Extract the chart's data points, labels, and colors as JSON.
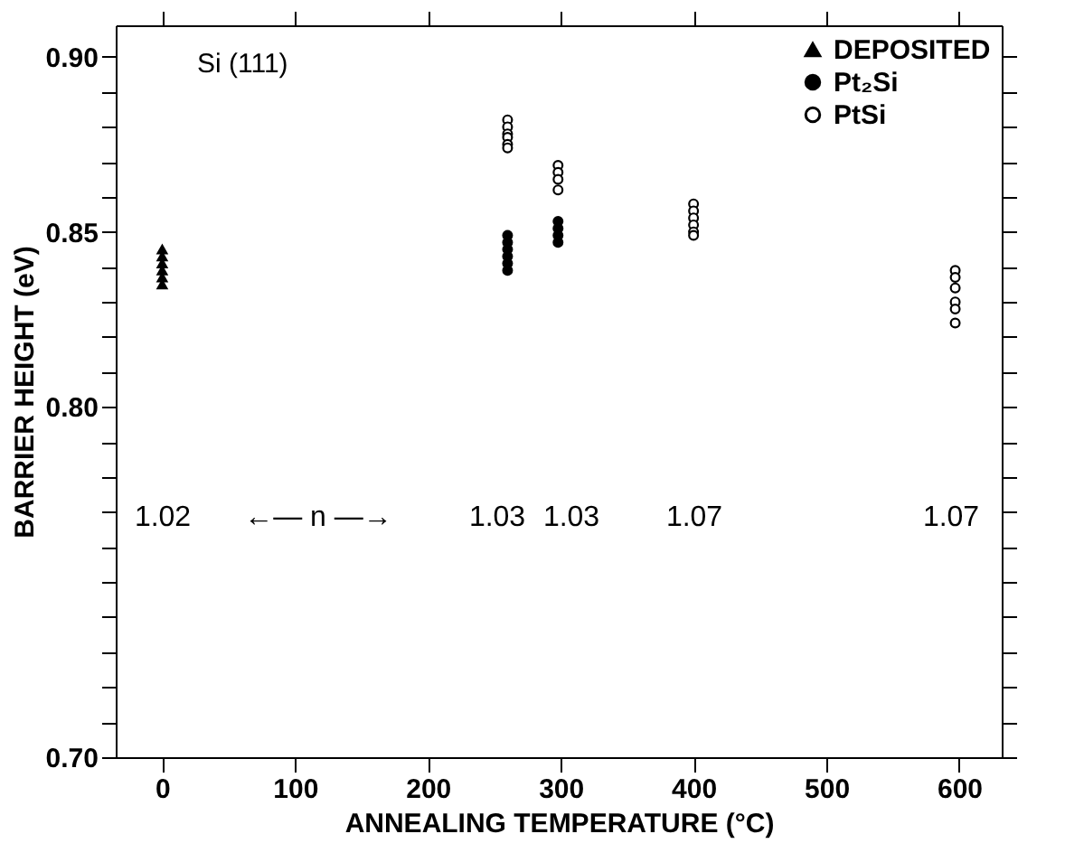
{
  "chart_data": {
    "type": "scatter",
    "xlabel": "ANNEALING TEMPERATURE (°C)",
    "ylabel": "BARRIER HEIGHT (eV)",
    "xlim": [
      -35,
      632
    ],
    "ylim": [
      0.7,
      0.909
    ],
    "xticks": [
      0,
      100,
      200,
      300,
      400,
      500,
      600
    ],
    "yticks": [
      {
        "value": 0.7,
        "label": "0.70"
      },
      {
        "value": 0.71,
        "label": null
      },
      {
        "value": 0.72,
        "label": null
      },
      {
        "value": 0.73,
        "label": null
      },
      {
        "value": 0.74,
        "label": null
      },
      {
        "value": 0.75,
        "label": null
      },
      {
        "value": 0.76,
        "label": null
      },
      {
        "value": 0.77,
        "label": null
      },
      {
        "value": 0.78,
        "label": null
      },
      {
        "value": 0.79,
        "label": null
      },
      {
        "value": 0.8,
        "label": "0.80"
      },
      {
        "value": 0.81,
        "label": null
      },
      {
        "value": 0.82,
        "label": null
      },
      {
        "value": 0.83,
        "label": null
      },
      {
        "value": 0.84,
        "label": null
      },
      {
        "value": 0.85,
        "label": "0.85"
      },
      {
        "value": 0.86,
        "label": null
      },
      {
        "value": 0.87,
        "label": null
      },
      {
        "value": 0.88,
        "label": null
      },
      {
        "value": 0.89,
        "label": null
      },
      {
        "value": 0.9,
        "label": "0.90"
      }
    ],
    "grid": false,
    "legend": "top right",
    "series": [
      {
        "name": "DEPOSITED",
        "color": "#000000",
        "marker": "triangle",
        "x": [
          0,
          0,
          0,
          0,
          0,
          0
        ],
        "values": [
          0.845,
          0.843,
          0.841,
          0.839,
          0.837,
          0.835
        ]
      },
      {
        "name": "Pt₂Si",
        "color": "#000000",
        "marker": "circle",
        "x": [
          260,
          260,
          260,
          260,
          260,
          260,
          298,
          298,
          298,
          298
        ],
        "values": [
          0.849,
          0.847,
          0.845,
          0.843,
          0.841,
          0.839,
          0.853,
          0.851,
          0.849,
          0.847
        ]
      },
      {
        "name": "PtSi",
        "color": "#000000",
        "marker": "circle",
        "x": [
          260,
          260,
          260,
          260,
          260,
          260,
          298,
          298,
          298,
          298,
          400,
          400,
          400,
          400,
          400,
          400,
          597,
          597,
          597,
          597,
          597,
          597
        ],
        "values": [
          0.882,
          0.88,
          0.878,
          0.877,
          0.875,
          0.874,
          0.869,
          0.867,
          0.865,
          0.862,
          0.858,
          0.856,
          0.854,
          0.852,
          0.85,
          0.849,
          0.839,
          0.837,
          0.834,
          0.83,
          0.828,
          0.824
        ]
      }
    ],
    "annotations": [
      "Si (111)",
      "1.02",
      "←— n —→",
      "1.03",
      "1.03",
      "1.07",
      "1.07"
    ]
  }
}
